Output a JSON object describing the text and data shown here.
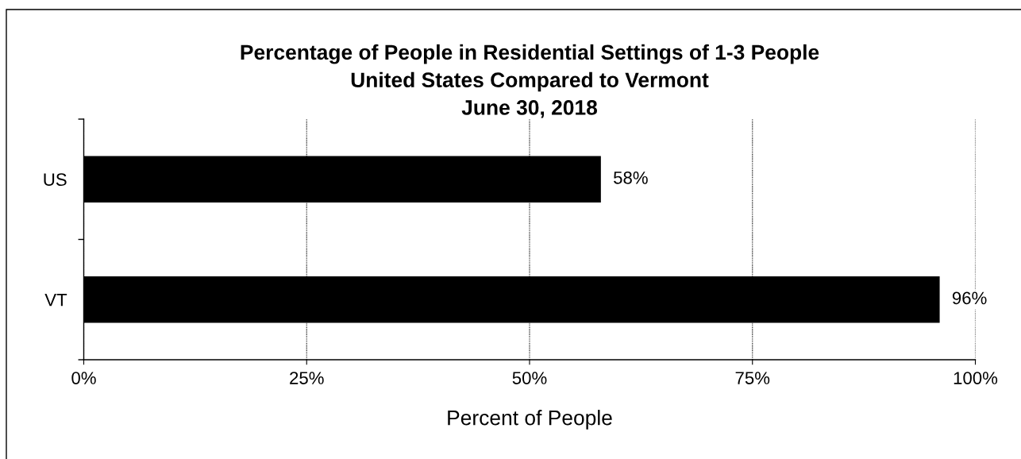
{
  "chart_data": {
    "type": "bar",
    "orientation": "horizontal",
    "title": "Percentage of People in Residential Settings of 1-3 People\nUnited States Compared to Vermont\nJune 30, 2018",
    "xlabel": "Percent of People",
    "categories": [
      "US",
      "VT"
    ],
    "values": [
      58,
      96
    ],
    "color": "#000000",
    "value_labels": [
      "58%",
      "96%"
    ],
    "xlim": [
      0,
      100
    ],
    "xticks": [
      {
        "value": 0,
        "label": "0%"
      },
      {
        "value": 25,
        "label": "25%"
      },
      {
        "value": 50,
        "label": "50%"
      },
      {
        "value": 75,
        "label": "75%"
      },
      {
        "value": 100,
        "label": "100%"
      }
    ],
    "grid": "x"
  }
}
